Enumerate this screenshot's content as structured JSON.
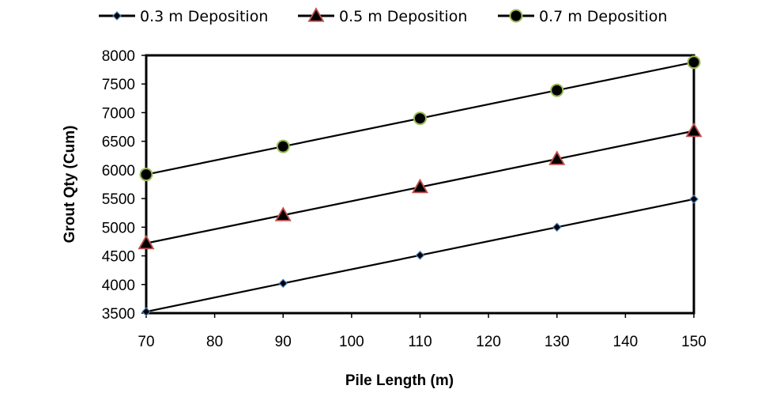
{
  "chart_data": {
    "type": "line",
    "title": "",
    "xlabel": "Pile Length (m)",
    "ylabel": "Grout Qty (Cum)",
    "xlim": [
      70,
      150
    ],
    "ylim": [
      3500,
      8000
    ],
    "xticks": [
      70,
      80,
      90,
      100,
      110,
      120,
      130,
      140,
      150
    ],
    "yticks": [
      3500,
      4000,
      4500,
      5000,
      5500,
      6000,
      6500,
      7000,
      7500,
      8000
    ],
    "grid": false,
    "legend_position": "top",
    "series": [
      {
        "name": "0.3 m Deposition",
        "marker": "diamond",
        "marker_fill": "#000000",
        "marker_edge": "#4f81bd",
        "line_color": "#000000",
        "x": [
          70,
          90,
          110,
          130,
          150
        ],
        "values": [
          3525,
          4020,
          4510,
          5000,
          5490
        ]
      },
      {
        "name": "0.5 m Deposition",
        "marker": "triangle",
        "marker_fill": "#000000",
        "marker_edge": "#c0504d",
        "line_color": "#000000",
        "x": [
          70,
          90,
          110,
          130,
          150
        ],
        "values": [
          4720,
          5210,
          5700,
          6190,
          6680
        ]
      },
      {
        "name": "0.7 m Deposition",
        "marker": "circle",
        "marker_fill": "#000000",
        "marker_edge": "#9bbb59",
        "line_color": "#000000",
        "x": [
          70,
          90,
          110,
          130,
          150
        ],
        "values": [
          5920,
          6410,
          6900,
          7390,
          7880
        ]
      }
    ]
  }
}
